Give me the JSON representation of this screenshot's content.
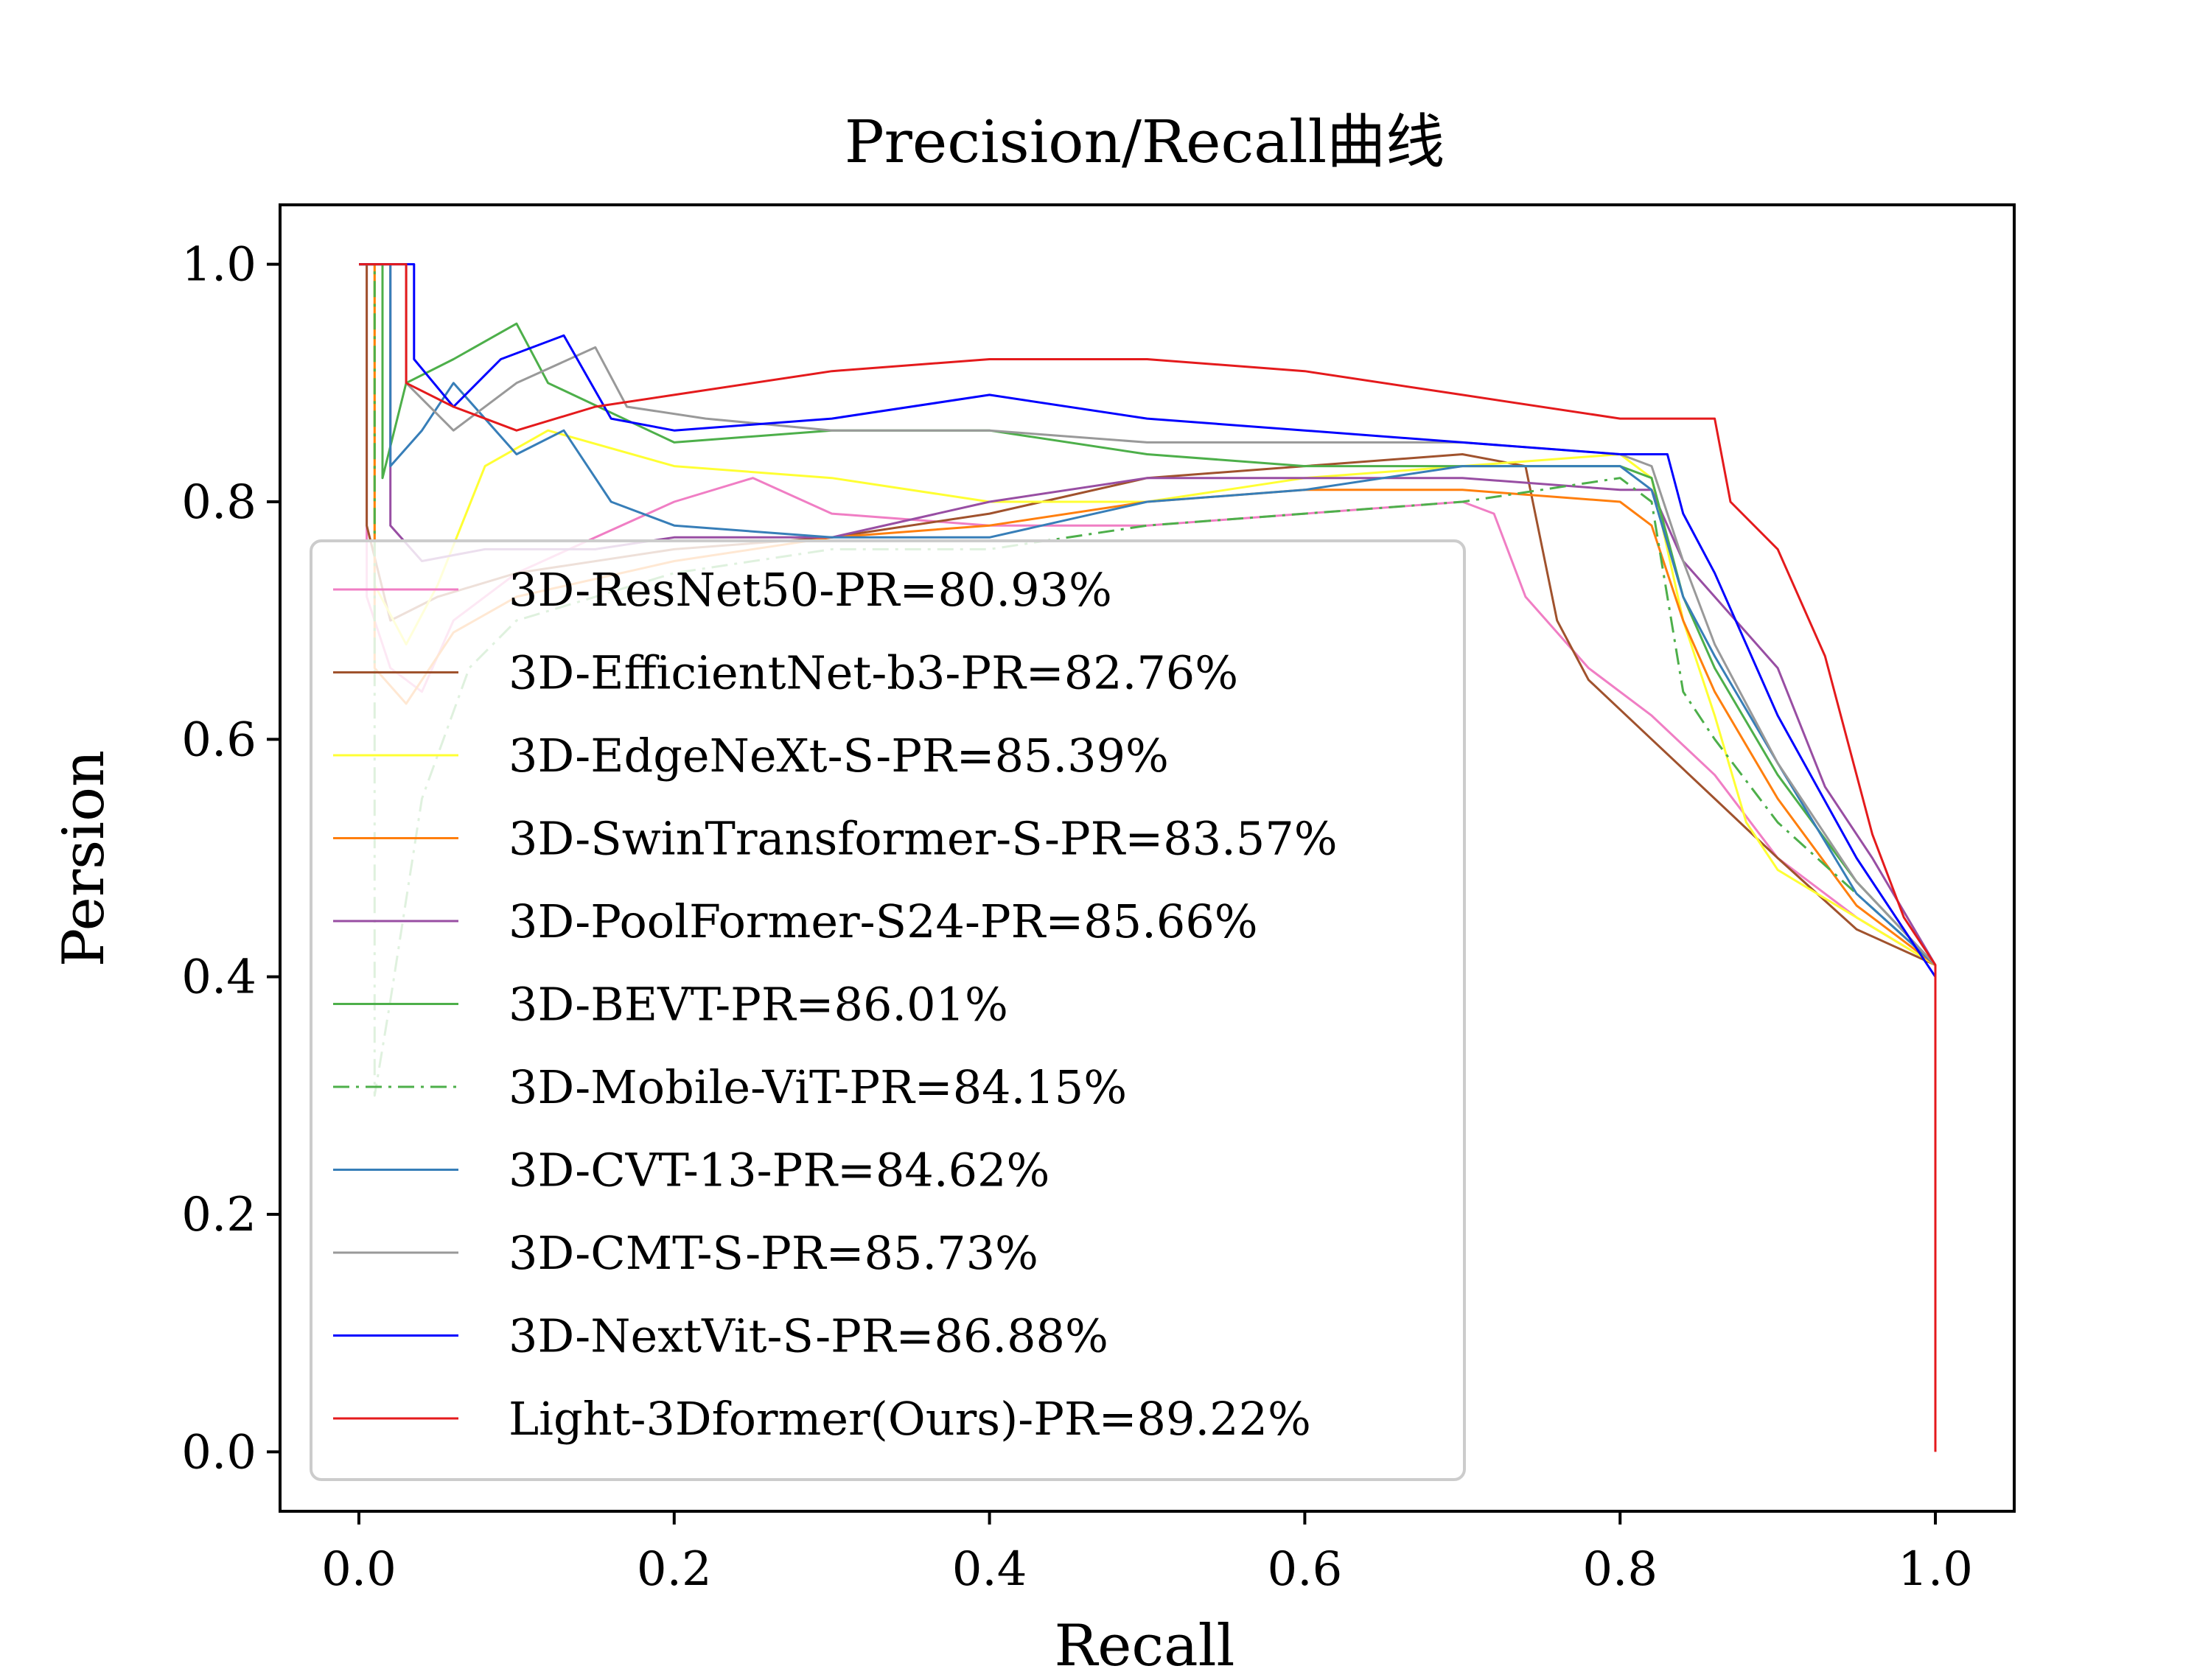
{
  "chart_data": {
    "type": "line",
    "title": "Precision/Recall曲线",
    "xlabel": "Recall",
    "ylabel": "Persion",
    "xlim": [
      -0.05,
      1.05
    ],
    "ylim": [
      -0.05,
      1.05
    ],
    "xticks": [
      "0.0",
      "0.2",
      "0.4",
      "0.6",
      "0.8",
      "1.0"
    ],
    "yticks": [
      "0.0",
      "0.2",
      "0.4",
      "0.6",
      "0.8",
      "1.0"
    ],
    "grid": false,
    "legend_position": "lower-left",
    "series": [
      {
        "name": "3D-ResNet50-PR=80.93%",
        "color": "#f07ec4",
        "dash": "solid",
        "points": [
          [
            0,
            1.0
          ],
          [
            0.005,
            1.0
          ],
          [
            0.005,
            0.72
          ],
          [
            0.02,
            0.66
          ],
          [
            0.04,
            0.64
          ],
          [
            0.06,
            0.7
          ],
          [
            0.1,
            0.74
          ],
          [
            0.15,
            0.77
          ],
          [
            0.2,
            0.8
          ],
          [
            0.25,
            0.82
          ],
          [
            0.3,
            0.79
          ],
          [
            0.4,
            0.78
          ],
          [
            0.5,
            0.78
          ],
          [
            0.6,
            0.79
          ],
          [
            0.7,
            0.8
          ],
          [
            0.72,
            0.79
          ],
          [
            0.74,
            0.72
          ],
          [
            0.78,
            0.66
          ],
          [
            0.82,
            0.62
          ],
          [
            0.86,
            0.57
          ],
          [
            0.9,
            0.5
          ],
          [
            0.95,
            0.45
          ],
          [
            1.0,
            0.41
          ]
        ]
      },
      {
        "name": "3D-EfficientNet-b3-PR=82.76%",
        "color": "#a0522d",
        "dash": "solid",
        "points": [
          [
            0,
            1.0
          ],
          [
            0.005,
            1.0
          ],
          [
            0.005,
            0.78
          ],
          [
            0.02,
            0.7
          ],
          [
            0.05,
            0.72
          ],
          [
            0.1,
            0.74
          ],
          [
            0.2,
            0.76
          ],
          [
            0.3,
            0.77
          ],
          [
            0.4,
            0.79
          ],
          [
            0.5,
            0.82
          ],
          [
            0.6,
            0.83
          ],
          [
            0.7,
            0.84
          ],
          [
            0.74,
            0.83
          ],
          [
            0.76,
            0.7
          ],
          [
            0.78,
            0.65
          ],
          [
            0.82,
            0.6
          ],
          [
            0.86,
            0.55
          ],
          [
            0.9,
            0.5
          ],
          [
            0.95,
            0.44
          ],
          [
            1.0,
            0.41
          ]
        ]
      },
      {
        "name": "3D-EdgeNeXt-S-PR=85.39%",
        "color": "#ffff33",
        "dash": "solid",
        "points": [
          [
            0,
            1.0
          ],
          [
            0.01,
            1.0
          ],
          [
            0.01,
            0.73
          ],
          [
            0.03,
            0.68
          ],
          [
            0.05,
            0.73
          ],
          [
            0.08,
            0.83
          ],
          [
            0.12,
            0.86
          ],
          [
            0.2,
            0.83
          ],
          [
            0.3,
            0.82
          ],
          [
            0.4,
            0.8
          ],
          [
            0.5,
            0.8
          ],
          [
            0.6,
            0.82
          ],
          [
            0.7,
            0.83
          ],
          [
            0.8,
            0.84
          ],
          [
            0.82,
            0.82
          ],
          [
            0.84,
            0.7
          ],
          [
            0.86,
            0.62
          ],
          [
            0.88,
            0.53
          ],
          [
            0.9,
            0.49
          ],
          [
            0.95,
            0.45
          ],
          [
            1.0,
            0.41
          ]
        ]
      },
      {
        "name": "3D-SwinTransformer-S-PR=83.57%",
        "color": "#ff7f0e",
        "dash": "solid",
        "points": [
          [
            0,
            1.0
          ],
          [
            0.01,
            1.0
          ],
          [
            0.01,
            0.66
          ],
          [
            0.03,
            0.63
          ],
          [
            0.06,
            0.69
          ],
          [
            0.1,
            0.72
          ],
          [
            0.2,
            0.75
          ],
          [
            0.3,
            0.77
          ],
          [
            0.4,
            0.78
          ],
          [
            0.5,
            0.8
          ],
          [
            0.6,
            0.81
          ],
          [
            0.7,
            0.81
          ],
          [
            0.8,
            0.8
          ],
          [
            0.82,
            0.78
          ],
          [
            0.84,
            0.7
          ],
          [
            0.86,
            0.64
          ],
          [
            0.9,
            0.55
          ],
          [
            0.95,
            0.46
          ],
          [
            1.0,
            0.41
          ]
        ]
      },
      {
        "name": "3D-PoolFormer-S24-PR=85.66%",
        "color": "#984ea3",
        "dash": "solid",
        "points": [
          [
            0,
            1.0
          ],
          [
            0.02,
            1.0
          ],
          [
            0.02,
            0.78
          ],
          [
            0.04,
            0.75
          ],
          [
            0.08,
            0.76
          ],
          [
            0.15,
            0.76
          ],
          [
            0.2,
            0.77
          ],
          [
            0.3,
            0.77
          ],
          [
            0.4,
            0.8
          ],
          [
            0.5,
            0.82
          ],
          [
            0.6,
            0.82
          ],
          [
            0.7,
            0.82
          ],
          [
            0.8,
            0.81
          ],
          [
            0.82,
            0.81
          ],
          [
            0.84,
            0.75
          ],
          [
            0.86,
            0.72
          ],
          [
            0.9,
            0.66
          ],
          [
            0.93,
            0.56
          ],
          [
            0.96,
            0.5
          ],
          [
            1.0,
            0.41
          ]
        ]
      },
      {
        "name": "3D-BEVT-PR=86.01%",
        "color": "#4daf4a",
        "dash": "solid",
        "points": [
          [
            0,
            1.0
          ],
          [
            0.015,
            1.0
          ],
          [
            0.015,
            0.82
          ],
          [
            0.03,
            0.9
          ],
          [
            0.06,
            0.92
          ],
          [
            0.1,
            0.95
          ],
          [
            0.12,
            0.9
          ],
          [
            0.2,
            0.85
          ],
          [
            0.3,
            0.86
          ],
          [
            0.4,
            0.86
          ],
          [
            0.5,
            0.84
          ],
          [
            0.6,
            0.83
          ],
          [
            0.7,
            0.83
          ],
          [
            0.8,
            0.83
          ],
          [
            0.82,
            0.82
          ],
          [
            0.84,
            0.72
          ],
          [
            0.86,
            0.66
          ],
          [
            0.9,
            0.57
          ],
          [
            0.95,
            0.48
          ],
          [
            1.0,
            0.41
          ]
        ]
      },
      {
        "name": "3D-Mobile-ViT-PR=84.15%",
        "color": "#4daf4a",
        "dash": "dashdot",
        "points": [
          [
            0,
            1.0
          ],
          [
            0.01,
            1.0
          ],
          [
            0.01,
            0.3
          ],
          [
            0.02,
            0.38
          ],
          [
            0.04,
            0.55
          ],
          [
            0.07,
            0.66
          ],
          [
            0.1,
            0.7
          ],
          [
            0.2,
            0.74
          ],
          [
            0.3,
            0.76
          ],
          [
            0.4,
            0.76
          ],
          [
            0.5,
            0.78
          ],
          [
            0.6,
            0.79
          ],
          [
            0.7,
            0.8
          ],
          [
            0.8,
            0.82
          ],
          [
            0.82,
            0.8
          ],
          [
            0.84,
            0.64
          ],
          [
            0.86,
            0.6
          ],
          [
            0.9,
            0.53
          ],
          [
            0.95,
            0.47
          ],
          [
            1.0,
            0.41
          ]
        ]
      },
      {
        "name": "3D-CVT-13-PR=84.62%",
        "color": "#377eb8",
        "dash": "solid",
        "points": [
          [
            0,
            1.0
          ],
          [
            0.02,
            1.0
          ],
          [
            0.02,
            0.83
          ],
          [
            0.04,
            0.86
          ],
          [
            0.06,
            0.9
          ],
          [
            0.1,
            0.84
          ],
          [
            0.13,
            0.86
          ],
          [
            0.16,
            0.8
          ],
          [
            0.2,
            0.78
          ],
          [
            0.3,
            0.77
          ],
          [
            0.4,
            0.77
          ],
          [
            0.5,
            0.8
          ],
          [
            0.6,
            0.81
          ],
          [
            0.7,
            0.83
          ],
          [
            0.8,
            0.83
          ],
          [
            0.82,
            0.81
          ],
          [
            0.84,
            0.72
          ],
          [
            0.86,
            0.67
          ],
          [
            0.9,
            0.58
          ],
          [
            0.95,
            0.47
          ],
          [
            1.0,
            0.41
          ]
        ]
      },
      {
        "name": "3D-CMT-S-PR=85.73%",
        "color": "#999999",
        "dash": "solid",
        "points": [
          [
            0,
            1.0
          ],
          [
            0.03,
            1.0
          ],
          [
            0.03,
            0.9
          ],
          [
            0.06,
            0.86
          ],
          [
            0.1,
            0.9
          ],
          [
            0.15,
            0.93
          ],
          [
            0.17,
            0.88
          ],
          [
            0.22,
            0.87
          ],
          [
            0.3,
            0.86
          ],
          [
            0.4,
            0.86
          ],
          [
            0.5,
            0.85
          ],
          [
            0.6,
            0.85
          ],
          [
            0.7,
            0.85
          ],
          [
            0.8,
            0.84
          ],
          [
            0.82,
            0.83
          ],
          [
            0.84,
            0.75
          ],
          [
            0.86,
            0.68
          ],
          [
            0.9,
            0.58
          ],
          [
            0.95,
            0.48
          ],
          [
            1.0,
            0.41
          ]
        ]
      },
      {
        "name": "3D-NextVit-S-PR=86.88%",
        "color": "#0000ff",
        "dash": "solid",
        "points": [
          [
            0,
            1.0
          ],
          [
            0.035,
            1.0
          ],
          [
            0.035,
            0.92
          ],
          [
            0.06,
            0.88
          ],
          [
            0.09,
            0.92
          ],
          [
            0.13,
            0.94
          ],
          [
            0.16,
            0.87
          ],
          [
            0.2,
            0.86
          ],
          [
            0.3,
            0.87
          ],
          [
            0.4,
            0.89
          ],
          [
            0.5,
            0.87
          ],
          [
            0.6,
            0.86
          ],
          [
            0.7,
            0.85
          ],
          [
            0.8,
            0.84
          ],
          [
            0.83,
            0.84
          ],
          [
            0.84,
            0.79
          ],
          [
            0.86,
            0.74
          ],
          [
            0.9,
            0.62
          ],
          [
            0.95,
            0.5
          ],
          [
            1.0,
            0.4
          ]
        ]
      },
      {
        "name": "Light-3Dformer(Ours)-PR=89.22%",
        "color": "#e41a1c",
        "dash": "solid",
        "points": [
          [
            0,
            1.0
          ],
          [
            0.03,
            1.0
          ],
          [
            0.03,
            0.9
          ],
          [
            0.06,
            0.88
          ],
          [
            0.1,
            0.86
          ],
          [
            0.15,
            0.88
          ],
          [
            0.2,
            0.89
          ],
          [
            0.3,
            0.91
          ],
          [
            0.4,
            0.92
          ],
          [
            0.5,
            0.92
          ],
          [
            0.6,
            0.91
          ],
          [
            0.7,
            0.89
          ],
          [
            0.8,
            0.87
          ],
          [
            0.86,
            0.87
          ],
          [
            0.87,
            0.8
          ],
          [
            0.9,
            0.76
          ],
          [
            0.93,
            0.67
          ],
          [
            0.96,
            0.52
          ],
          [
            0.98,
            0.45
          ],
          [
            1.0,
            0.41
          ],
          [
            1.0,
            0.0
          ]
        ]
      }
    ]
  }
}
